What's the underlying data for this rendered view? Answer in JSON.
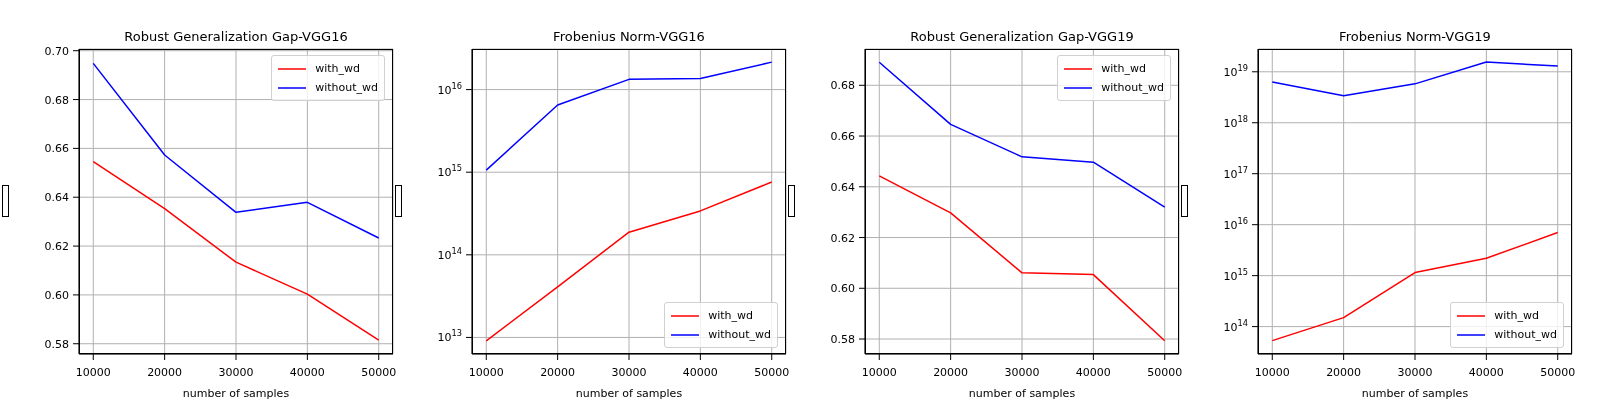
{
  "chart_data": [
    {
      "type": "line",
      "title": "Robust Generalization Gap-VGG16",
      "xlabel": "number of samples",
      "x": [
        10000,
        20000,
        30000,
        40000,
        50000
      ],
      "series": [
        {
          "name": "with_wd",
          "color": "#ff0000",
          "values": [
            0.6546,
            0.6353,
            0.6134,
            0.6003,
            0.5815
          ]
        },
        {
          "name": "without_wd",
          "color": "#0000ff",
          "values": [
            0.6948,
            0.6573,
            0.6338,
            0.6379,
            0.6233
          ]
        }
      ],
      "xlim": [
        8000,
        52000
      ],
      "xticks": [
        10000,
        20000,
        30000,
        40000,
        50000
      ],
      "ylim": [
        0.5758,
        0.7007
      ],
      "yticks": [
        {
          "value": 0.58,
          "label": "0.58"
        },
        {
          "value": 0.6,
          "label": "0.60"
        },
        {
          "value": 0.62,
          "label": "0.62"
        },
        {
          "value": 0.64,
          "label": "0.64"
        },
        {
          "value": 0.66,
          "label": "0.66"
        },
        {
          "value": 0.68,
          "label": "0.68"
        },
        {
          "value": 0.7,
          "label": "0.70"
        }
      ],
      "grid": true,
      "legend": "top right"
    },
    {
      "type": "line",
      "title": "Frobenius Norm-VGG16",
      "xlabel": "number of samples",
      "x": [
        10000,
        20000,
        30000,
        40000,
        50000
      ],
      "series": [
        {
          "name": "with_wd",
          "color": "#ff0000",
          "values": [
            9100000000000.0,
            41000000000000.0,
            188000000000000.0,
            340000000000000.0,
            760000000000000.0
          ]
        },
        {
          "name": "without_wd",
          "color": "#0000ff",
          "values": [
            1060000000000000.0,
            6500000000000000.0,
            1.33e+16,
            1.36e+16,
            2.15e+16
          ]
        }
      ],
      "xlim": [
        8000,
        52000
      ],
      "xticks": [
        10000,
        20000,
        30000,
        40000,
        50000
      ],
      "ylim": [
        6300000000000.0,
        3.1e+16
      ],
      "log": true,
      "yticks": [
        {
          "value": 10000000000000.0,
          "label": "10$^{13}$"
        },
        {
          "value": 100000000000000.0,
          "label": "10$^{14}$"
        },
        {
          "value": 1000000000000000.0,
          "label": "10$^{15}$"
        },
        {
          "value": 1e+16,
          "label": "10$^{16}$"
        }
      ],
      "grid": true,
      "legend": "bottom right"
    },
    {
      "type": "line",
      "title": "Robust Generalization Gap-VGG19",
      "xlabel": "number of samples",
      "x": [
        10000,
        20000,
        30000,
        40000,
        50000
      ],
      "series": [
        {
          "name": "with_wd",
          "color": "#ff0000",
          "values": [
            0.6443,
            0.6297,
            0.6061,
            0.6054,
            0.5793
          ]
        },
        {
          "name": "without_wd",
          "color": "#0000ff",
          "values": [
            0.6891,
            0.6646,
            0.6518,
            0.6497,
            0.632
          ]
        }
      ],
      "xlim": [
        8000,
        52000
      ],
      "xticks": [
        10000,
        20000,
        30000,
        40000,
        50000
      ],
      "ylim": [
        0.5741,
        0.6943
      ],
      "yticks": [
        {
          "value": 0.58,
          "label": "0.58"
        },
        {
          "value": 0.6,
          "label": "0.60"
        },
        {
          "value": 0.62,
          "label": "0.62"
        },
        {
          "value": 0.64,
          "label": "0.64"
        },
        {
          "value": 0.66,
          "label": "0.66"
        },
        {
          "value": 0.68,
          "label": "0.68"
        }
      ],
      "grid": true,
      "legend": "top right"
    },
    {
      "type": "line",
      "title": "Frobenius Norm-VGG19",
      "xlabel": "number of samples",
      "x": [
        10000,
        20000,
        30000,
        40000,
        50000
      ],
      "series": [
        {
          "name": "with_wd",
          "color": "#ff0000",
          "values": [
            53000000000000.0,
            150000000000000.0,
            1150000000000000.0,
            2200000000000000.0,
            7000000000000000.0
          ]
        },
        {
          "name": "without_wd",
          "color": "#0000ff",
          "values": [
            6.3e+18,
            3.4e+18,
            5.8e+18,
            1.55e+19,
            1.3e+19
          ]
        }
      ],
      "xlim": [
        8000,
        52000
      ],
      "xticks": [
        10000,
        20000,
        30000,
        40000,
        50000
      ],
      "ylim": [
        29000000000000.0,
        2.8e+19
      ],
      "log": true,
      "yticks": [
        {
          "value": 100000000000000.0,
          "label": "10$^{14}$"
        },
        {
          "value": 1000000000000000.0,
          "label": "10$^{15}$"
        },
        {
          "value": 1e+16,
          "label": "10$^{16}$"
        },
        {
          "value": 1e+17,
          "label": "10$^{17}$"
        },
        {
          "value": 1e+18,
          "label": "10$^{18}$"
        },
        {
          "value": 1e+19,
          "label": "10$^{19}$"
        }
      ],
      "grid": true,
      "legend": "bottom right"
    }
  ]
}
